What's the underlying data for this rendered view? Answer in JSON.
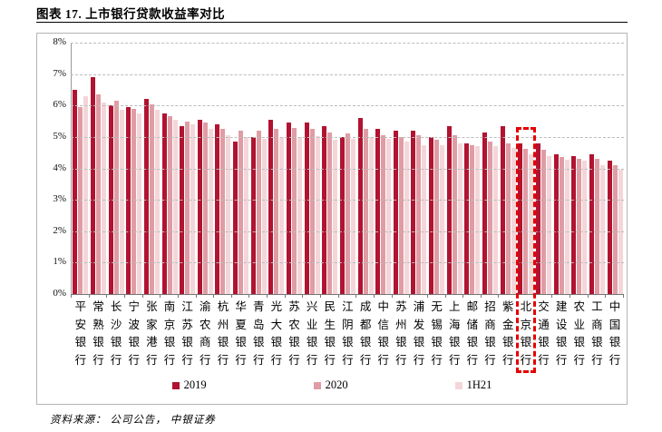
{
  "figure": {
    "title": "图表 17. 上市银行贷款收益率对比",
    "source": "资料来源： 公司公告， 中银证券"
  },
  "y_axis": {
    "tick_labels": [
      "8%",
      "7%",
      "6%",
      "5%",
      "4%",
      "3%",
      "2%",
      "1%",
      "0%"
    ],
    "max": 8,
    "min": 0
  },
  "legend": {
    "items": [
      "2019",
      "2020",
      "1H21"
    ]
  },
  "colors": {
    "series_2019": "#b11330",
    "series_2020": "#e09ca4",
    "series_1H21": "#f4d6d8",
    "highlight_box": "#e60000",
    "gridline": "#bcbcbc",
    "axis": "#777777"
  },
  "highlight_bank": "北京银行",
  "chart_data": {
    "type": "bar",
    "title": "图表 17. 上市银行贷款收益率对比",
    "xlabel": "",
    "ylabel": "",
    "ylim": [
      0,
      8
    ],
    "grid": "dashed-horizontal",
    "legend_position": "bottom",
    "unit": "%",
    "categories": [
      "平安银行",
      "常熟银行",
      "长沙银行",
      "宁波银行",
      "张家港行",
      "南京银行",
      "江苏银行",
      "渝农商行",
      "杭州银行",
      "华夏银行",
      "青岛银行",
      "光大银行",
      "苏农银行",
      "兴业银行",
      "民生银行",
      "江阴银行",
      "成都银行",
      "中信银行",
      "苏州银行",
      "浦发银行",
      "无锡银行",
      "上海银行",
      "邮储银行",
      "招商银行",
      "紫金银行",
      "北京银行",
      "交通银行",
      "建设银行",
      "农业银行",
      "工商银行",
      "中国银行"
    ],
    "series": [
      {
        "name": "2019",
        "values": [
          6.5,
          6.9,
          6.0,
          5.95,
          6.2,
          5.75,
          5.35,
          5.55,
          5.4,
          4.85,
          5.0,
          5.55,
          5.45,
          5.45,
          5.35,
          5.0,
          5.6,
          5.25,
          5.2,
          5.2,
          5.0,
          5.35,
          4.8,
          5.15,
          5.35,
          4.8,
          4.8,
          4.45,
          4.4,
          4.45,
          4.25
        ]
      },
      {
        "name": "2020",
        "values": [
          5.95,
          6.35,
          6.15,
          5.9,
          6.05,
          5.65,
          5.5,
          5.45,
          5.25,
          5.2,
          5.2,
          5.25,
          5.3,
          5.25,
          5.15,
          5.1,
          5.25,
          5.05,
          5.0,
          5.05,
          4.9,
          5.05,
          4.75,
          4.85,
          4.8,
          4.62,
          4.6,
          4.35,
          4.3,
          4.3,
          4.1
        ]
      },
      {
        "name": "1H21",
        "values": [
          6.3,
          6.1,
          5.85,
          5.75,
          5.85,
          5.55,
          5.4,
          5.25,
          5.05,
          5.0,
          4.95,
          5.0,
          5.0,
          5.03,
          4.9,
          4.95,
          5.0,
          4.95,
          4.85,
          4.75,
          4.75,
          4.8,
          4.7,
          4.7,
          4.65,
          4.45,
          4.4,
          4.28,
          4.25,
          4.1,
          3.95
        ]
      }
    ]
  }
}
